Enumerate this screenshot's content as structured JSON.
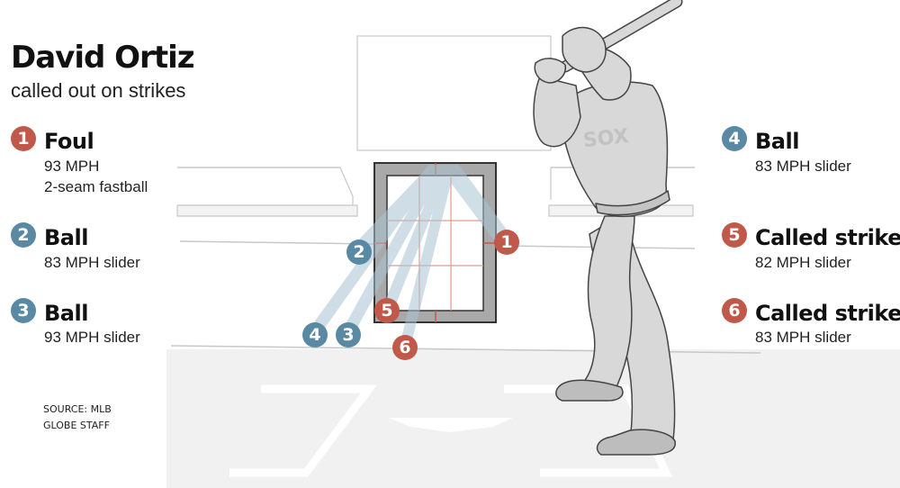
{
  "title": "David Ortiz",
  "subtitle": "called out on strikes",
  "colors": {
    "strike_red": "#c0594a",
    "ball_blue": "#5a8aa3",
    "player_gray": "#d8d8d8",
    "field_gray": "#f0f0f0"
  },
  "pitches": [
    {
      "number": "1",
      "result": "Foul",
      "speed": "93 MPH",
      "pitch_type": "2-seam fastball",
      "kind": "strike"
    },
    {
      "number": "2",
      "result": "Ball",
      "speed": "83 MPH",
      "pitch_type": "slider",
      "kind": "ball"
    },
    {
      "number": "3",
      "result": "Ball",
      "speed": "93 MPH",
      "pitch_type": "slider",
      "kind": "ball"
    },
    {
      "number": "4",
      "result": "Ball",
      "speed": "83 MPH",
      "pitch_type": "slider",
      "kind": "ball"
    },
    {
      "number": "5",
      "result": "Called strike",
      "speed": "82 MPH",
      "pitch_type": "slider",
      "kind": "strike"
    },
    {
      "number": "6",
      "result": "Called strike",
      "speed": "83 MPH",
      "pitch_type": "slider",
      "kind": "strike"
    }
  ],
  "source": "SOURCE: MLB",
  "credit": "GLOBE STAFF"
}
